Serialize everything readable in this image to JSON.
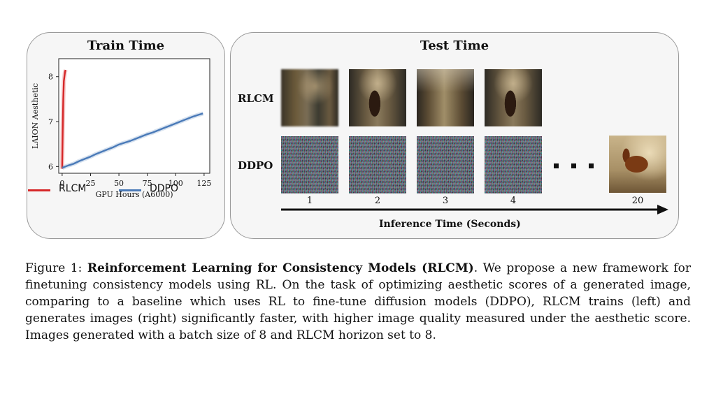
{
  "train_panel": {
    "title": "Train Time"
  },
  "chart_data": {
    "type": "line",
    "title": "Train Time",
    "xlabel": "GPU Hours (A6000)",
    "ylabel": "LAION Aesthetic",
    "xlim": [
      -3,
      130
    ],
    "ylim": [
      5.85,
      8.4
    ],
    "xticks": [
      0,
      25,
      50,
      75,
      100,
      125
    ],
    "yticks": [
      6,
      7,
      8
    ],
    "legend_position": "bottom",
    "series": [
      {
        "name": "RLCM",
        "color": "#d62728",
        "x": [
          0,
          0.5,
          1,
          1.5,
          2.5,
          3
        ],
        "y": [
          5.95,
          6.8,
          7.5,
          7.9,
          8.1,
          8.15
        ]
      },
      {
        "name": "DDPO",
        "color": "#4a7ab8",
        "x": [
          0,
          5,
          10,
          15,
          20,
          25,
          30,
          35,
          40,
          45,
          50,
          55,
          60,
          65,
          70,
          75,
          80,
          85,
          90,
          95,
          100,
          105,
          110,
          115,
          120,
          124
        ],
        "y": [
          5.97,
          6.02,
          6.06,
          6.12,
          6.17,
          6.22,
          6.28,
          6.33,
          6.38,
          6.43,
          6.49,
          6.53,
          6.57,
          6.62,
          6.67,
          6.72,
          6.76,
          6.81,
          6.86,
          6.91,
          6.96,
          7.01,
          7.06,
          7.11,
          7.15,
          7.18
        ]
      }
    ]
  },
  "test_panel": {
    "title": "Test Time",
    "rows": [
      "RLCM",
      "DDPO"
    ],
    "time_labels": [
      "1",
      "2",
      "3",
      "4",
      "20"
    ],
    "axis_label": "Inference Time (Seconds)"
  },
  "caption": {
    "prefix": "Figure 1: ",
    "bold": "Reinforcement Learning for Consistency Models (RLCM)",
    "text": ". We propose a new framework for finetuning consistency models using RL. On the task of optimizing aesthetic scores of a generated image, comparing to a baseline which uses RL to fine-tune diffusion models (DDPO), RLCM trains (left) and generates images (right) significantly faster, with higher image quality measured under the aesthetic score. Images generated with a batch size of 8 and RLCM horizon set to 8."
  }
}
